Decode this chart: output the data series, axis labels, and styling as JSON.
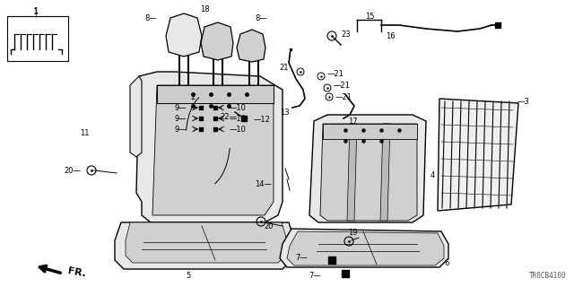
{
  "part_code": "TR0CB4100",
  "bg_color": "#ffffff",
  "line_color": "#000000",
  "seat_fill": "#e8e8e8",
  "seat_panel": "#d0d0d0",
  "frame_fill": "#f0f0f0"
}
